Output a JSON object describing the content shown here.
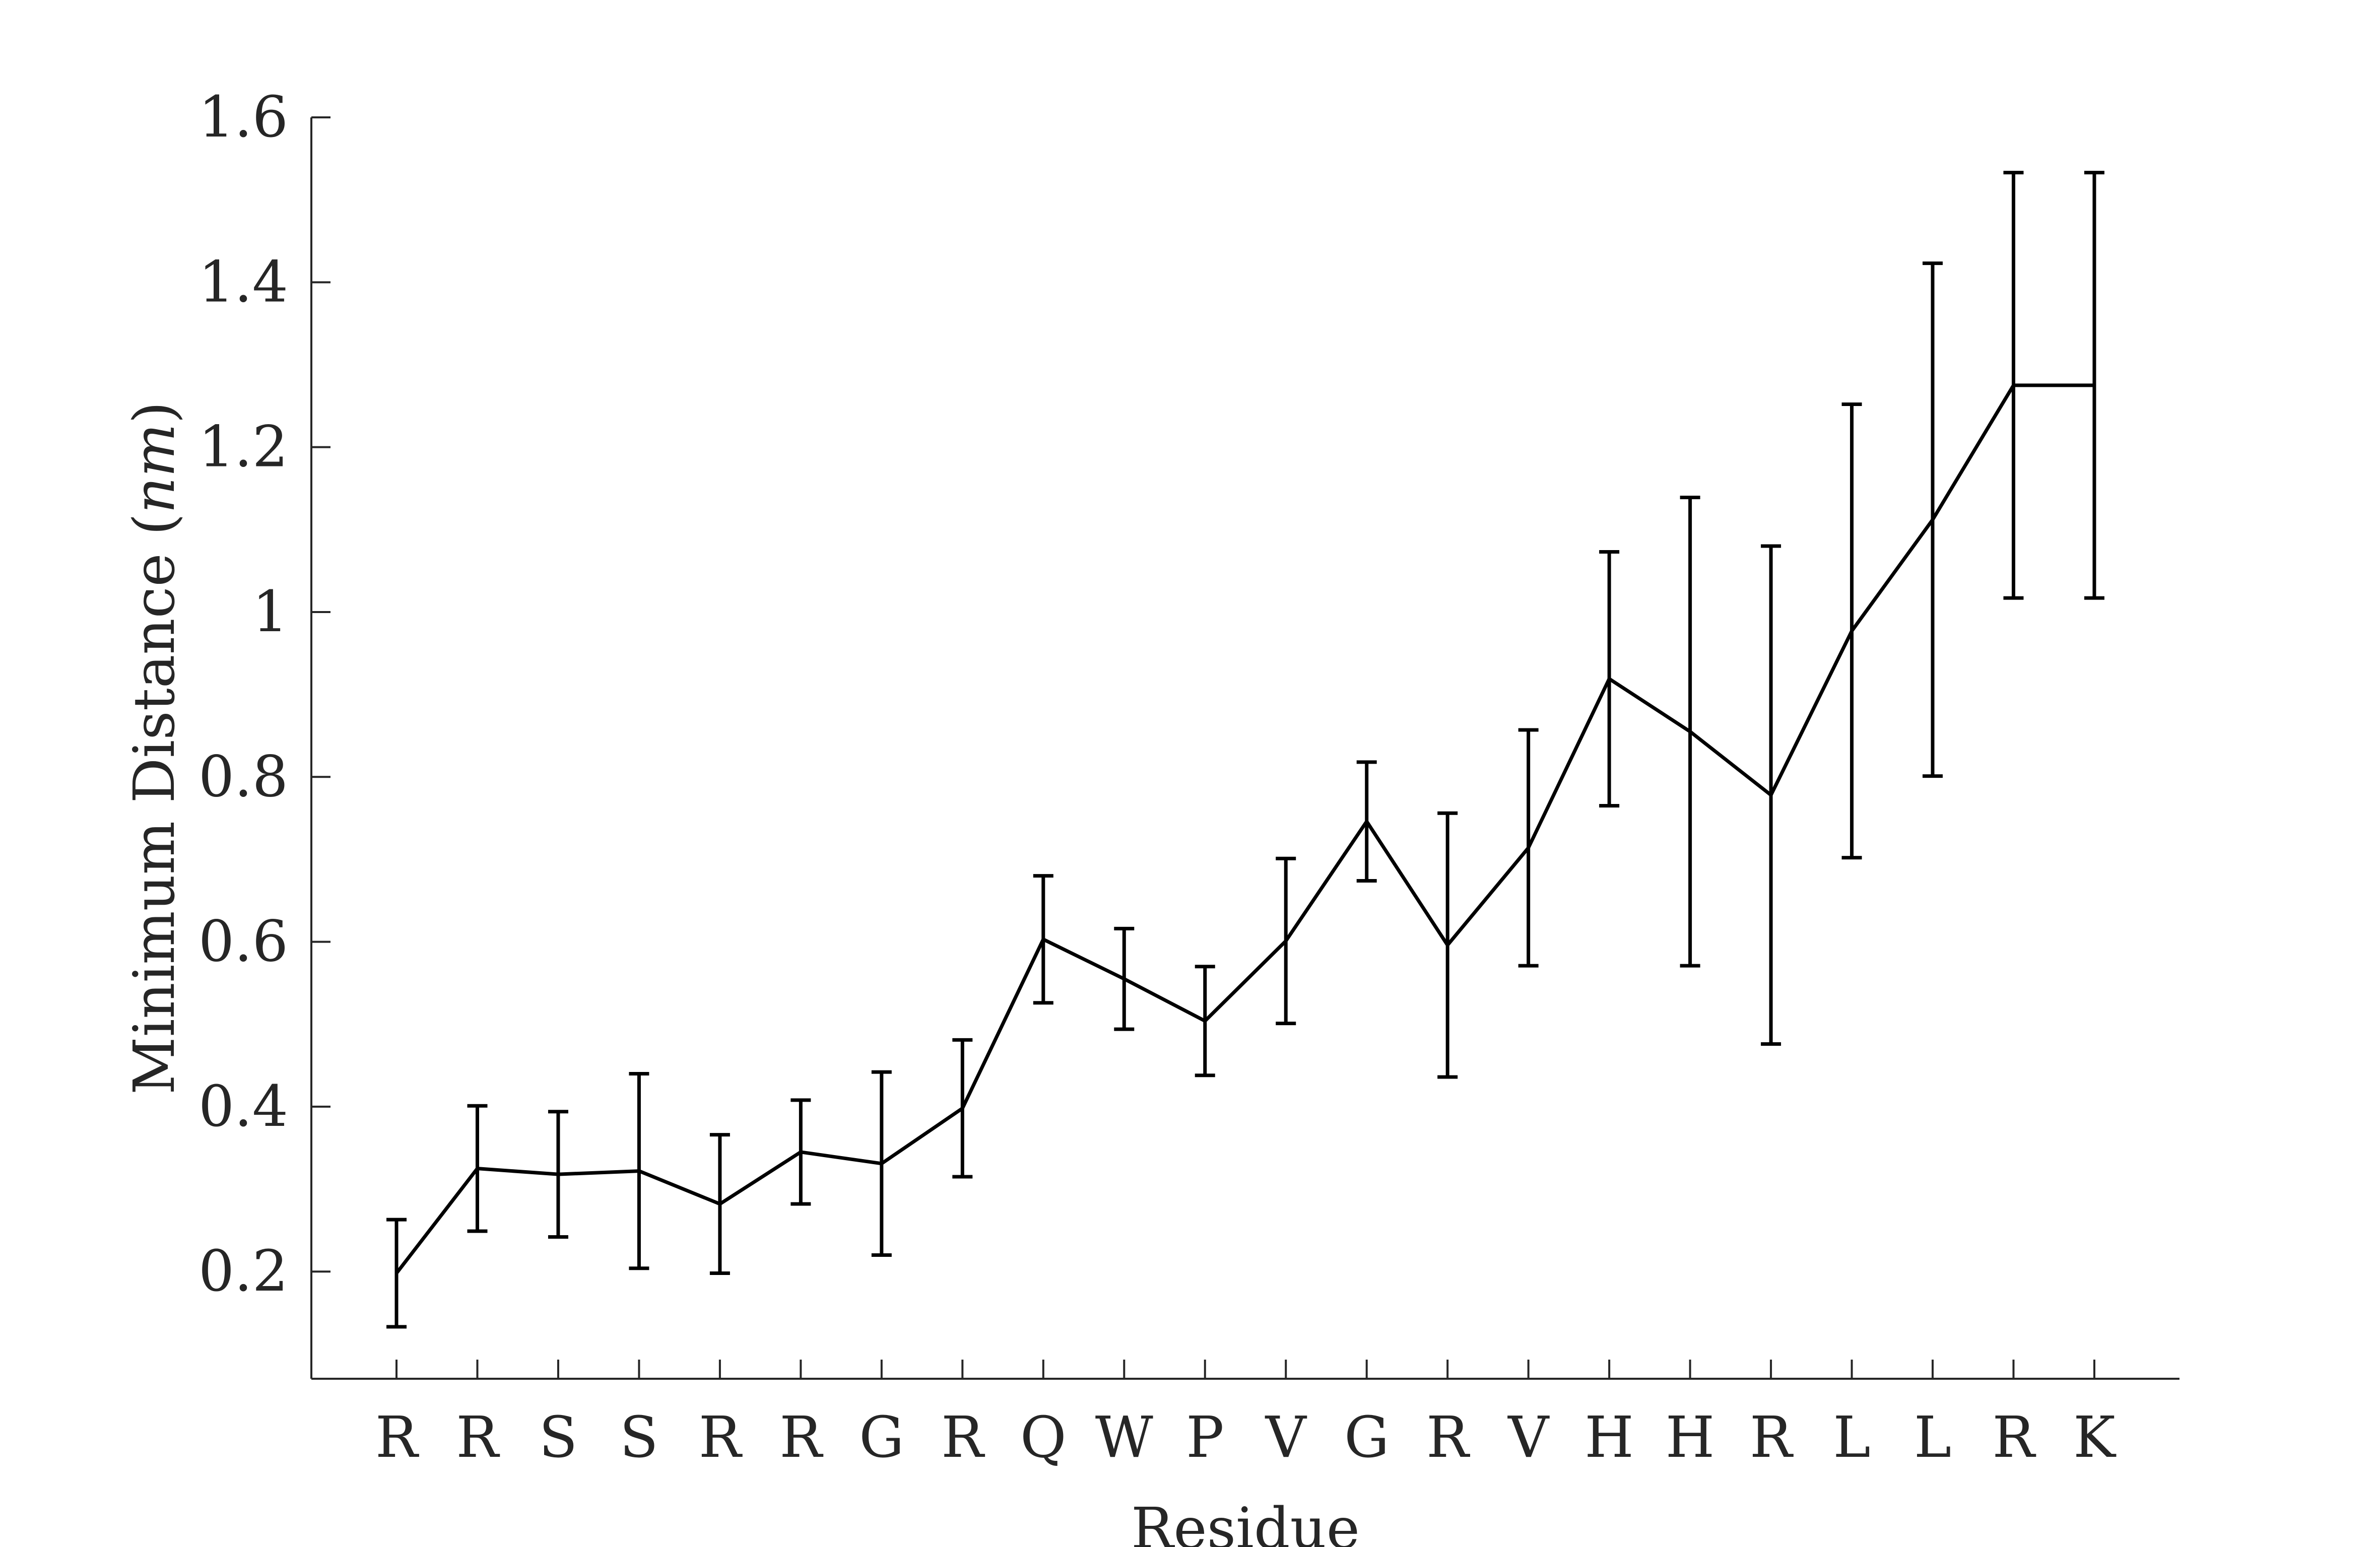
{
  "chart_data": {
    "type": "line",
    "xlabel": "Residue",
    "ylabel": "Minimum Distance (nm)",
    "ylabel_parts": {
      "main": "Minimum Distance (",
      "unit": "nm",
      "close": ")"
    },
    "categories": [
      "R",
      "R",
      "S",
      "S",
      "R",
      "R",
      "G",
      "R",
      "Q",
      "W",
      "P",
      "V",
      "G",
      "R",
      "V",
      "H",
      "H",
      "R",
      "L",
      "L",
      "R",
      "K"
    ],
    "series": [
      {
        "values": [
          0.198,
          0.325,
          0.318,
          0.322,
          0.282,
          0.345,
          0.331,
          0.398,
          0.603,
          0.555,
          0.504,
          0.601,
          0.746,
          0.596,
          0.714,
          0.919,
          0.855,
          0.778,
          0.977,
          1.112,
          1.275,
          1.275
        ],
        "error": [
          0.065,
          0.076,
          0.076,
          0.118,
          0.084,
          0.063,
          0.111,
          0.083,
          0.077,
          0.061,
          0.066,
          0.1,
          0.072,
          0.16,
          0.143,
          0.154,
          0.284,
          0.302,
          0.275,
          0.311,
          0.258,
          0.258
        ]
      }
    ],
    "ylim": [
      0.07,
      1.6
    ],
    "yticks": [
      "0.2",
      "0.4",
      "0.6",
      "0.8",
      "1",
      "1.2",
      "1.4",
      "1.6"
    ],
    "grid": false,
    "legend": "none",
    "line_color": "#000000"
  }
}
